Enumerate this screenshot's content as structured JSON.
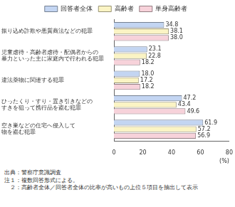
{
  "chart_data": {
    "type": "bar",
    "orientation": "horizontal",
    "categories": [
      "振り込め詐欺や悪質商法などの犯罪",
      "児童虐待・高齢者虐待・配偶者からの\n暴力といった主に家庭内で行われる犯罪",
      "違法薬物に関連する犯罪",
      "ひったくり・すり・置き引きなどの\nすきを狙って携行品を盗む犯罪",
      "空き巣などの住宅へ侵入して\n物を盗む犯罪"
    ],
    "series": [
      {
        "name": "回答者全体",
        "color": "#c3d5f2",
        "values": [
          34.8,
          23.1,
          18.0,
          47.2,
          61.9
        ],
        "value_labels": [
          "34.8",
          "23.1",
          "18.0",
          "47.2",
          "61.9"
        ]
      },
      {
        "name": "高齢者",
        "color": "#fbf4c4",
        "values": [
          38.1,
          22.8,
          17.2,
          43.4,
          57.2
        ],
        "value_labels": [
          "38.1",
          "22.8",
          "17.2",
          "43.4",
          "57.2"
        ]
      },
      {
        "name": "単身高齢者",
        "color": "#f7d2da",
        "values": [
          38.0,
          18.2,
          18.2,
          49.6,
          56.9
        ],
        "value_labels": [
          "38.0",
          "18.2",
          "18.2",
          "49.6",
          "56.9"
        ]
      }
    ],
    "xlabel": "(%)",
    "xlim": [
      0,
      80
    ],
    "xticks": [
      0,
      20,
      40,
      60,
      80
    ],
    "grid": false,
    "legend": "top",
    "data_labels": true,
    "annotations": [
      "出典：警察庁意識調査",
      "注１：複数回答形式による。",
      "　２：高齢者全体／回答者全体の比率が高いもの上位５項目を抽出して表示"
    ]
  }
}
